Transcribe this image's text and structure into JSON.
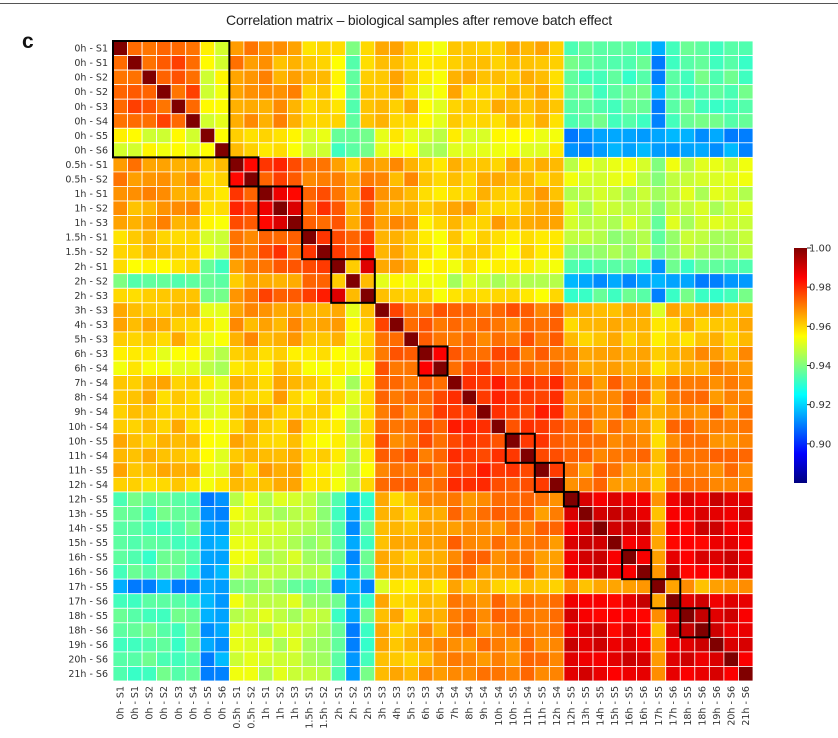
{
  "figure": {
    "panel_letter": "c",
    "title": "Correlation matrix – biological samples after remove batch effect"
  },
  "chart_data": {
    "type": "heatmap",
    "title": "Correlation matrix – biological samples after remove batch effect",
    "labels": [
      "0h - S1",
      "0h - S1",
      "0h - S2",
      "0h - S2",
      "0h - S3",
      "0h - S4",
      "0h - S5",
      "0h - S6",
      "0.5h - S1",
      "0.5h - S2",
      "1h - S1",
      "1h - S2",
      "1h - S3",
      "1.5h - S1",
      "1.5h - S2",
      "2h - S1",
      "2h - S2",
      "2h - S3",
      "3h - S3",
      "4h - S3",
      "5h - S3",
      "6h - S3",
      "6h - S4",
      "7h - S4",
      "8h - S4",
      "9h - S4",
      "10h - S4",
      "10h - S5",
      "11h - S4",
      "11h - S5",
      "12h - S4",
      "12h - S5",
      "13h - S5",
      "14h - S5",
      "15h - S5",
      "16h - S5",
      "16h - S6",
      "17h - S5",
      "17h - S6",
      "18h - S5",
      "18h - S6",
      "19h - S6",
      "20h - S6",
      "21h - S6"
    ],
    "colorbar": {
      "min": 0.88,
      "max": 1.0,
      "ticks": [
        "1.00",
        "0.98",
        "0.96",
        "0.94",
        "0.92",
        "0.90"
      ]
    },
    "colormap": "jet",
    "highlight_blocks": [
      [
        0,
        7
      ],
      [
        8,
        9
      ],
      [
        10,
        12
      ],
      [
        13,
        14
      ],
      [
        15,
        17
      ],
      [
        21,
        22
      ],
      [
        27,
        28
      ],
      [
        29,
        30
      ],
      [
        31,
        31
      ],
      [
        35,
        36
      ],
      [
        37,
        38
      ],
      [
        39,
        40
      ]
    ],
    "groups": [
      [
        0,
        7
      ],
      [
        8,
        9
      ],
      [
        10,
        12
      ],
      [
        13,
        14
      ],
      [
        15,
        17
      ],
      [
        18,
        20
      ],
      [
        21,
        22
      ],
      [
        23,
        30
      ],
      [
        31,
        43
      ]
    ],
    "within_group_r": [
      0.975,
      0.985,
      0.987,
      0.982,
      0.985,
      0.975,
      0.985,
      0.978,
      0.988
    ],
    "between_group_r": [
      [
        null,
        0.968,
        0.966,
        0.96,
        0.958,
        0.963,
        0.955,
        0.962,
        0.935
      ],
      [
        0.968,
        null,
        0.977,
        0.972,
        0.97,
        0.966,
        0.96,
        0.963,
        0.95
      ],
      [
        0.966,
        0.977,
        null,
        0.976,
        0.974,
        0.966,
        0.96,
        0.963,
        0.948
      ],
      [
        0.96,
        0.972,
        0.976,
        null,
        0.978,
        0.964,
        0.958,
        0.958,
        0.945
      ],
      [
        0.958,
        0.97,
        0.974,
        0.978,
        null,
        0.963,
        0.958,
        0.956,
        0.935
      ],
      [
        0.963,
        0.966,
        0.966,
        0.964,
        0.963,
        null,
        0.973,
        0.972,
        0.962
      ],
      [
        0.955,
        0.96,
        0.96,
        0.958,
        0.958,
        0.973,
        null,
        0.974,
        0.966
      ],
      [
        0.962,
        0.963,
        0.963,
        0.958,
        0.956,
        0.972,
        0.974,
        null,
        0.97
      ],
      [
        0.935,
        0.95,
        0.948,
        0.945,
        0.935,
        0.962,
        0.966,
        0.97,
        null
      ]
    ],
    "low_rows": [
      6,
      7,
      16,
      37
    ],
    "diagonal_r": 1.0
  }
}
